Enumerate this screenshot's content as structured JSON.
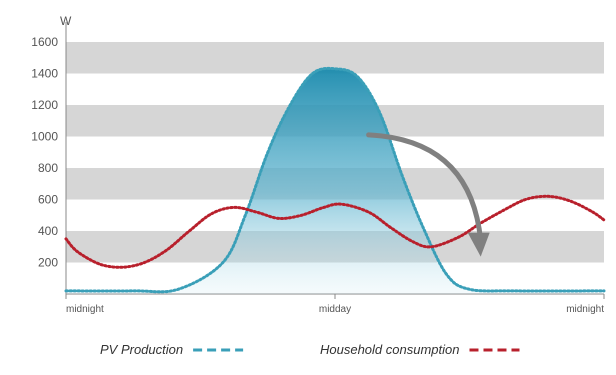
{
  "chart_data": {
    "type": "line",
    "y_unit": "W",
    "ylim": [
      0,
      1600
    ],
    "y_ticks": [
      200,
      400,
      600,
      800,
      1000,
      1200,
      1400,
      1600
    ],
    "x_tick_labels": [
      "midnight",
      "midday",
      "midnight"
    ],
    "x_range_hours": [
      0,
      24
    ],
    "grid": "alternating horizontal bands",
    "legend_position": "bottom",
    "series": [
      {
        "name": "PV Production",
        "color": "#3a9fb8",
        "fill": "gradient",
        "points": [
          [
            0,
            20
          ],
          [
            3,
            20
          ],
          [
            5,
            30
          ],
          [
            7,
            200
          ],
          [
            8,
            500
          ],
          [
            9,
            900
          ],
          [
            10,
            1200
          ],
          [
            11,
            1400
          ],
          [
            12,
            1430
          ],
          [
            13,
            1380
          ],
          [
            14,
            1150
          ],
          [
            15,
            750
          ],
          [
            16,
            400
          ],
          [
            17,
            120
          ],
          [
            18,
            30
          ],
          [
            20,
            20
          ],
          [
            24,
            20
          ]
        ]
      },
      {
        "name": "Household consumption",
        "color": "#b8202c",
        "points": [
          [
            0,
            350
          ],
          [
            0.5,
            270
          ],
          [
            1.5,
            190
          ],
          [
            2.5,
            170
          ],
          [
            3.5,
            200
          ],
          [
            4.5,
            280
          ],
          [
            5.5,
            400
          ],
          [
            6.5,
            510
          ],
          [
            7.5,
            550
          ],
          [
            8.5,
            520
          ],
          [
            9.5,
            480
          ],
          [
            10.5,
            500
          ],
          [
            11.5,
            550
          ],
          [
            12.3,
            570
          ],
          [
            13.5,
            520
          ],
          [
            14.5,
            420
          ],
          [
            15.5,
            330
          ],
          [
            16.3,
            300
          ],
          [
            17.5,
            360
          ],
          [
            18.5,
            450
          ],
          [
            19.5,
            530
          ],
          [
            20.5,
            600
          ],
          [
            21.5,
            620
          ],
          [
            22.5,
            590
          ],
          [
            23.5,
            520
          ],
          [
            24,
            470
          ]
        ]
      }
    ],
    "annotation_arrow": {
      "from": [
        13.5,
        1010
      ],
      "to": [
        18.5,
        250
      ],
      "color": "#808080",
      "description": "shift arrow"
    }
  }
}
